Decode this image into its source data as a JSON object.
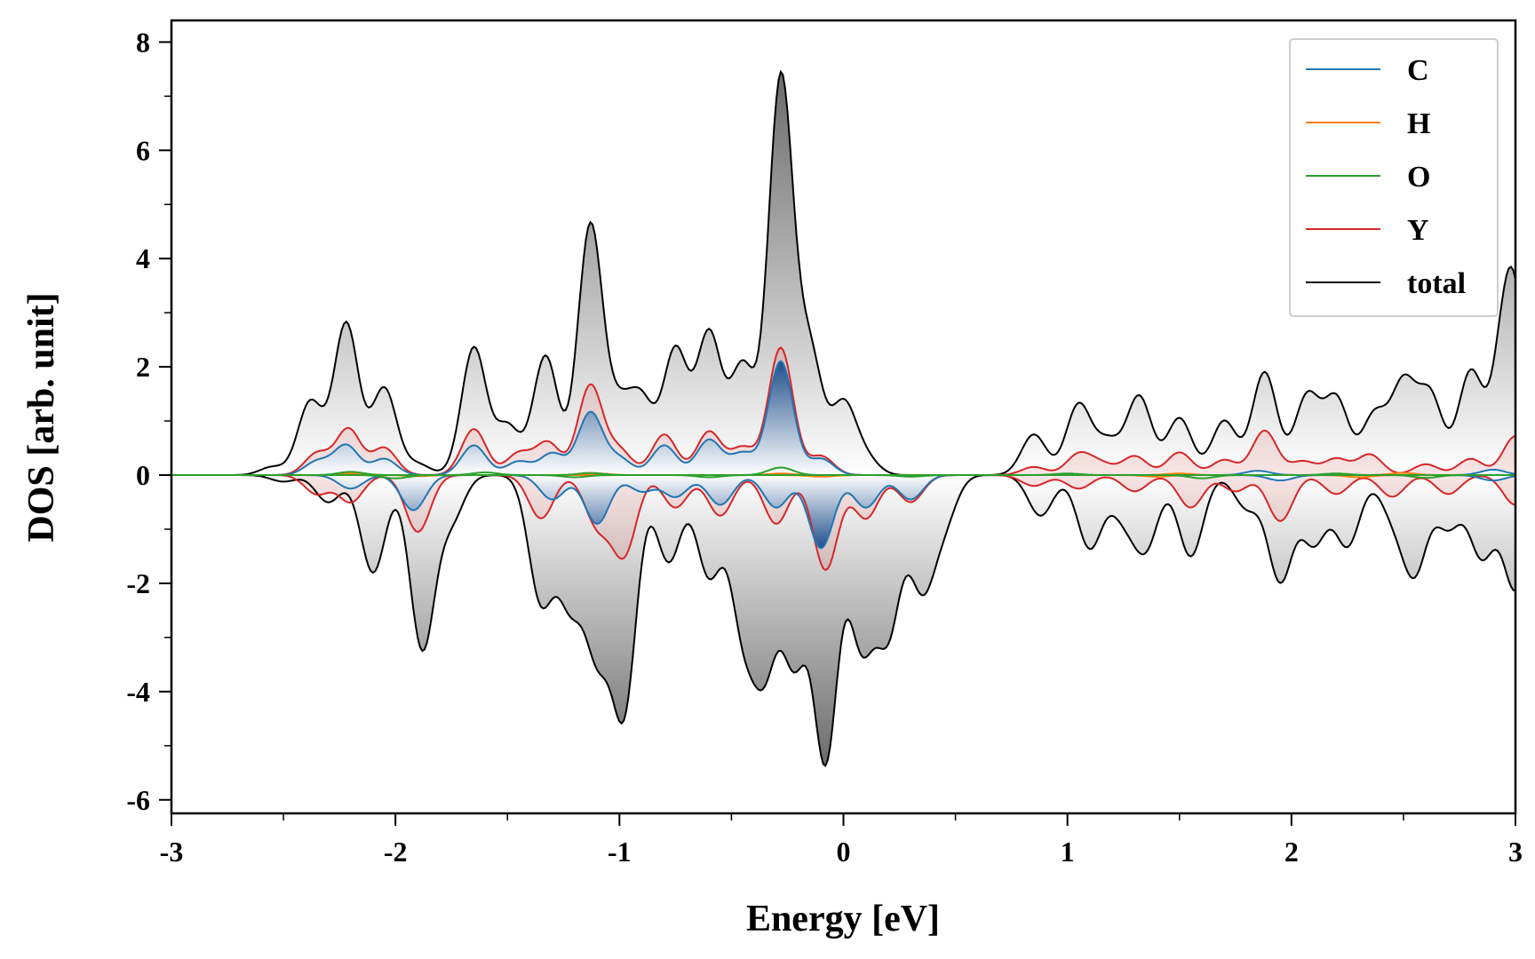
{
  "chart_data": {
    "type": "line",
    "title": "",
    "xlabel": "Energy [eV]",
    "ylabel": "DOS [arb. unit]",
    "xlim": [
      -3,
      3
    ],
    "ylim": [
      -6.25,
      8.4
    ],
    "x_ticks": [
      -3,
      -2,
      -1,
      0,
      1,
      2,
      3
    ],
    "x_tick_labels": [
      "-3",
      "-2",
      "-1",
      "0",
      "1",
      "2",
      "3"
    ],
    "y_ticks": [
      -6,
      -4,
      -2,
      0,
      2,
      4,
      6,
      8
    ],
    "y_tick_labels": [
      "-6",
      "-4",
      "-2",
      "0",
      "2",
      "4",
      "6",
      "8"
    ],
    "grid": false,
    "legend_position": "top-right",
    "spin_channels": "upper half spin-up (positive), lower half spin-down (negative)",
    "peak_width_eV": 0.055,
    "series": [
      {
        "name": "C",
        "color": "#1f77b4",
        "fill": "blue-gradient",
        "up_peaks": [
          [
            -2.35,
            0.25
          ],
          [
            -2.22,
            0.55
          ],
          [
            -2.05,
            0.3
          ],
          [
            -1.65,
            0.55
          ],
          [
            -1.45,
            0.25
          ],
          [
            -1.3,
            0.4
          ],
          [
            -1.13,
            1.15
          ],
          [
            -1.0,
            0.3
          ],
          [
            -0.8,
            0.55
          ],
          [
            -0.6,
            0.65
          ],
          [
            -0.45,
            0.4
          ],
          [
            -0.28,
            2.1
          ],
          [
            -0.1,
            0.3
          ],
          [
            1.85,
            0.08
          ],
          [
            2.9,
            0.1
          ]
        ],
        "down_peaks": [
          [
            -2.2,
            -0.25
          ],
          [
            -1.92,
            -0.65
          ],
          [
            -1.3,
            -0.45
          ],
          [
            -1.1,
            -0.9
          ],
          [
            -0.9,
            -0.3
          ],
          [
            -0.75,
            -0.4
          ],
          [
            -0.55,
            -0.55
          ],
          [
            -0.3,
            -0.6
          ],
          [
            -0.1,
            -1.35
          ],
          [
            0.1,
            -0.6
          ],
          [
            0.3,
            -0.45
          ],
          [
            1.95,
            -0.1
          ],
          [
            2.9,
            -0.1
          ]
        ]
      },
      {
        "name": "H",
        "color": "#ff7f0e",
        "up_peaks": [
          [
            -2.2,
            0.03
          ],
          [
            -1.1,
            0.03
          ],
          [
            -0.28,
            0.03
          ],
          [
            1.5,
            0.03
          ],
          [
            2.5,
            0.04
          ]
        ],
        "down_peaks": [
          [
            -1.9,
            -0.02
          ],
          [
            -0.1,
            -0.03
          ],
          [
            1.4,
            -0.03
          ],
          [
            2.3,
            -0.04
          ]
        ]
      },
      {
        "name": "O",
        "color": "#2ca02c",
        "up_peaks": [
          [
            -2.2,
            0.06
          ],
          [
            -1.6,
            0.05
          ],
          [
            -1.13,
            0.04
          ],
          [
            -0.28,
            0.14
          ],
          [
            1.0,
            0.03
          ],
          [
            2.2,
            0.03
          ]
        ],
        "down_peaks": [
          [
            -2.0,
            -0.06
          ],
          [
            -1.2,
            -0.04
          ],
          [
            -0.6,
            -0.04
          ],
          [
            0.3,
            -0.03
          ],
          [
            1.6,
            -0.06
          ],
          [
            2.6,
            -0.05
          ]
        ]
      },
      {
        "name": "Y",
        "color": "#d62728",
        "fill": "red-tint",
        "up_peaks": [
          [
            -2.35,
            0.4
          ],
          [
            -2.21,
            0.85
          ],
          [
            -2.05,
            0.5
          ],
          [
            -1.65,
            0.85
          ],
          [
            -1.45,
            0.4
          ],
          [
            -1.32,
            0.6
          ],
          [
            -1.13,
            1.65
          ],
          [
            -1.0,
            0.45
          ],
          [
            -0.8,
            0.75
          ],
          [
            -0.6,
            0.8
          ],
          [
            -0.45,
            0.5
          ],
          [
            -0.28,
            2.35
          ],
          [
            -0.1,
            0.35
          ],
          [
            0.85,
            0.15
          ],
          [
            1.05,
            0.38
          ],
          [
            1.15,
            0.2
          ],
          [
            1.3,
            0.35
          ],
          [
            1.5,
            0.42
          ],
          [
            1.7,
            0.28
          ],
          [
            1.88,
            0.82
          ],
          [
            2.05,
            0.25
          ],
          [
            2.2,
            0.3
          ],
          [
            2.35,
            0.38
          ],
          [
            2.6,
            0.2
          ],
          [
            2.8,
            0.3
          ],
          [
            3.0,
            0.72
          ]
        ],
        "down_peaks": [
          [
            -2.35,
            -0.35
          ],
          [
            -2.2,
            -0.5
          ],
          [
            -1.9,
            -1.05
          ],
          [
            -1.35,
            -0.8
          ],
          [
            -1.1,
            -0.9
          ],
          [
            -0.98,
            -1.45
          ],
          [
            -0.75,
            -0.6
          ],
          [
            -0.55,
            -0.75
          ],
          [
            -0.3,
            -0.9
          ],
          [
            -0.08,
            -1.75
          ],
          [
            0.1,
            -0.8
          ],
          [
            0.3,
            -0.5
          ],
          [
            0.85,
            -0.2
          ],
          [
            1.05,
            -0.25
          ],
          [
            1.3,
            -0.3
          ],
          [
            1.55,
            -0.6
          ],
          [
            1.75,
            -0.3
          ],
          [
            1.95,
            -0.85
          ],
          [
            2.2,
            -0.35
          ],
          [
            2.45,
            -0.4
          ],
          [
            2.7,
            -0.35
          ],
          [
            3.0,
            -0.55
          ]
        ]
      },
      {
        "name": "total",
        "color": "#000000",
        "fill": "gray-gradient",
        "up_peaks": [
          [
            -2.55,
            0.15
          ],
          [
            -2.38,
            1.35
          ],
          [
            -2.22,
            2.8
          ],
          [
            -2.05,
            1.6
          ],
          [
            -1.9,
            0.2
          ],
          [
            -1.65,
            2.35
          ],
          [
            -1.5,
            0.9
          ],
          [
            -1.33,
            2.2
          ],
          [
            -1.13,
            4.6
          ],
          [
            -1.0,
            1.1
          ],
          [
            -0.9,
            1.3
          ],
          [
            -0.75,
            2.3
          ],
          [
            -0.6,
            2.6
          ],
          [
            -0.45,
            2.0
          ],
          [
            -0.28,
            7.3
          ],
          [
            -0.15,
            2.2
          ],
          [
            0.0,
            1.3
          ],
          [
            0.1,
            0.3
          ],
          [
            0.85,
            0.75
          ],
          [
            1.05,
            1.3
          ],
          [
            1.18,
            0.6
          ],
          [
            1.32,
            1.45
          ],
          [
            1.5,
            1.05
          ],
          [
            1.7,
            1.0
          ],
          [
            1.88,
            1.9
          ],
          [
            2.07,
            1.45
          ],
          [
            2.2,
            1.4
          ],
          [
            2.37,
            1.1
          ],
          [
            2.5,
            1.65
          ],
          [
            2.62,
            1.45
          ],
          [
            2.8,
            1.9
          ],
          [
            2.95,
            1.85
          ],
          [
            3.0,
            2.4
          ]
        ],
        "down_peaks": [
          [
            -2.5,
            -0.12
          ],
          [
            -2.3,
            -0.5
          ],
          [
            -2.1,
            -1.8
          ],
          [
            -1.88,
            -3.2
          ],
          [
            -1.75,
            -0.8
          ],
          [
            -1.35,
            -2.3
          ],
          [
            -1.22,
            -2.2
          ],
          [
            -1.1,
            -3.0
          ],
          [
            -0.98,
            -4.25
          ],
          [
            -0.78,
            -1.6
          ],
          [
            -0.6,
            -1.85
          ],
          [
            -0.45,
            -2.6
          ],
          [
            -0.35,
            -3.2
          ],
          [
            -0.22,
            -3.25
          ],
          [
            -0.08,
            -5.2
          ],
          [
            0.08,
            -3.0
          ],
          [
            0.2,
            -2.8
          ],
          [
            0.35,
            -2.0
          ],
          [
            0.45,
            -0.8
          ],
          [
            0.88,
            -0.75
          ],
          [
            1.1,
            -1.35
          ],
          [
            1.25,
            -0.7
          ],
          [
            1.35,
            -1.3
          ],
          [
            1.55,
            -1.5
          ],
          [
            1.8,
            -0.6
          ],
          [
            1.95,
            -1.95
          ],
          [
            2.1,
            -1.25
          ],
          [
            2.25,
            -1.3
          ],
          [
            2.45,
            -0.65
          ],
          [
            2.55,
            -1.75
          ],
          [
            2.7,
            -0.95
          ],
          [
            2.85,
            -1.5
          ],
          [
            3.0,
            -2.1
          ]
        ]
      }
    ]
  }
}
